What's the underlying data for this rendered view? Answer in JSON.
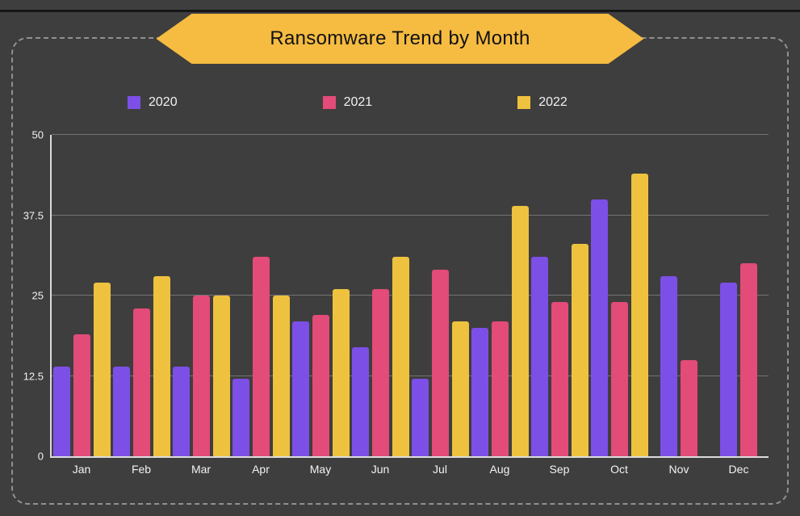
{
  "title": "Ransomware Trend by Month",
  "colors": {
    "background": "#3f3e3e",
    "banner": "#f5bc41",
    "grid": "rgba(255,255,255,0.28)",
    "axis": "#dcdcdc",
    "text": "#f2f2f2"
  },
  "chart_data": {
    "type": "bar",
    "title": "Ransomware Trend by Month",
    "categories": [
      "Jan",
      "Feb",
      "Mar",
      "Apr",
      "May",
      "Jun",
      "Jul",
      "Aug",
      "Sep",
      "Oct",
      "Nov",
      "Dec"
    ],
    "series": [
      {
        "name": "2020",
        "color": "#7c4fe6",
        "values": [
          14,
          14,
          14,
          12,
          21,
          17,
          12,
          20,
          31,
          40,
          28,
          27
        ]
      },
      {
        "name": "2021",
        "color": "#e34b78",
        "values": [
          19,
          23,
          25,
          31,
          22,
          26,
          29,
          21,
          24,
          24,
          15,
          30
        ]
      },
      {
        "name": "2022",
        "color": "#eec23e",
        "values": [
          27,
          28,
          25,
          25,
          26,
          31,
          21,
          39,
          33,
          44,
          null,
          null
        ]
      }
    ],
    "ylim": [
      0,
      50
    ],
    "yticks": [
      0,
      12.5,
      25,
      37.5,
      50
    ],
    "legend_position": "top",
    "grid": true
  }
}
